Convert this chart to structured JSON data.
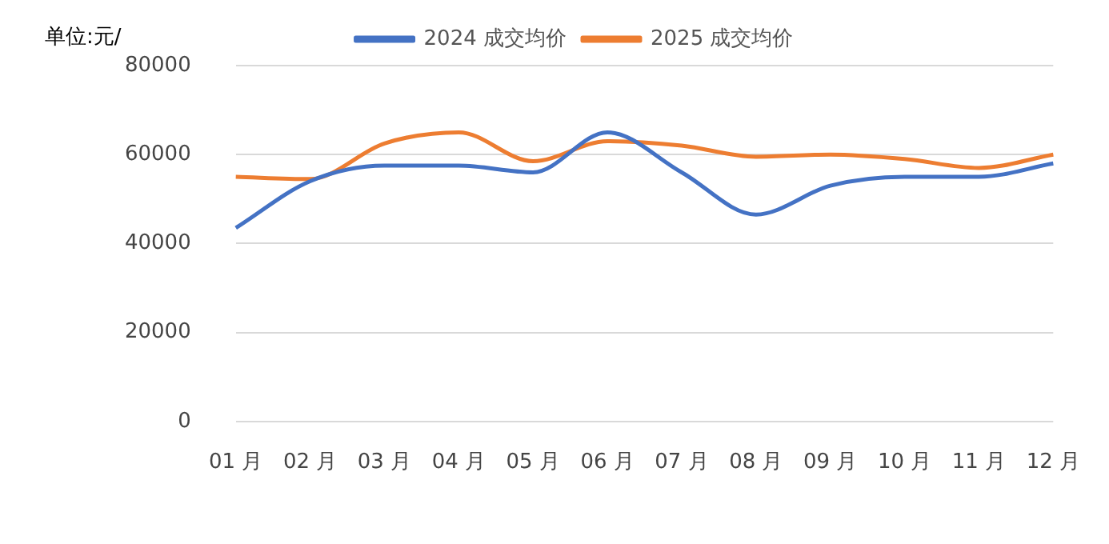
{
  "chart_data": {
    "type": "line",
    "ylabel": "单位:元/",
    "categories": [
      "01 月",
      "02 月",
      "03 月",
      "04 月",
      "05 月",
      "06 月",
      "07 月",
      "08 月",
      "09 月",
      "10 月",
      "11 月",
      "12 月"
    ],
    "series": [
      {
        "name": "2024 成交均价",
        "color": "#4472c4",
        "values": [
          43500,
          54000,
          57500,
          57500,
          56000,
          65000,
          56000,
          46500,
          53000,
          55000,
          55000,
          58000
        ]
      },
      {
        "name": "2025 成交均价",
        "color": "#ed7d31",
        "values": [
          55000,
          54500,
          62500,
          65000,
          58500,
          63000,
          62000,
          59500,
          60000,
          59000,
          57000,
          60000
        ]
      }
    ],
    "ylim": [
      0,
      80000
    ],
    "yticks": [
      0,
      20000,
      40000,
      60000,
      80000
    ],
    "grid": "y",
    "legend": "top",
    "marker": "none",
    "line_style": "solid"
  }
}
